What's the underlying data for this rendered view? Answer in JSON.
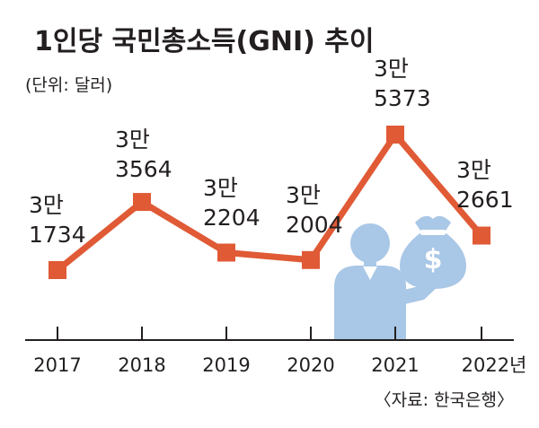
{
  "chart_data": {
    "type": "line",
    "title": "1인당 국민총소득(GNI) 추이",
    "unit": "(단위: 달러)",
    "source": "〈자료: 한국은행〉",
    "categories": [
      "2017",
      "2018",
      "2019",
      "2020",
      "2021",
      "2022년"
    ],
    "values": [
      31734,
      33564,
      32204,
      32004,
      35373,
      32661
    ],
    "data_labels": [
      [
        "3만",
        "1734"
      ],
      [
        "3만",
        "3564"
      ],
      [
        "3만",
        "2204"
      ],
      [
        "3만",
        "2004"
      ],
      [
        "3만",
        "5373"
      ],
      [
        "3만",
        "2661"
      ]
    ],
    "ylim": [
      30000,
      36000
    ],
    "grid": false,
    "legend": "none",
    "colors": {
      "line": "#e05a36",
      "marker": "#e05a36",
      "axis": "#231f20",
      "text": "#231f20",
      "figure": "#a9c7e6"
    },
    "illustration": "businessman-holding-dollar-money-bag"
  }
}
